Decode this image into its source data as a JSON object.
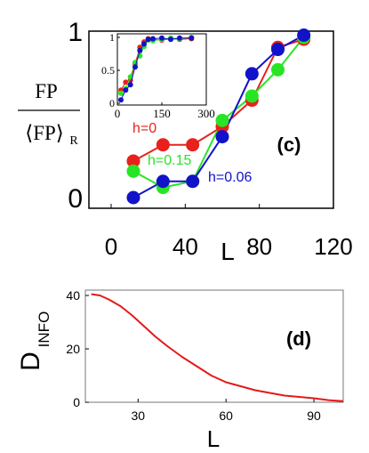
{
  "colors": {
    "red": "#e8211d",
    "green": "#27e524",
    "blue": "#1212c8",
    "curve": "#e31a1a",
    "axis": "#000000"
  },
  "chart_data": [
    {
      "type": "line",
      "panel_label": "(c)",
      "ylabel_numerator": "FP",
      "ylabel_denominator": "⟨FP⟩",
      "ylabel_denominator_sub": "R",
      "xlabel": "L",
      "xlim": [
        -12,
        120
      ],
      "ylim": [
        0,
        1
      ],
      "xticks": [
        "0",
        "40",
        "80",
        "120"
      ],
      "xtick_values": [
        0,
        40,
        80,
        120
      ],
      "yticks": [
        "0",
        "1"
      ],
      "ytick_values": [
        0,
        1
      ],
      "series": [
        {
          "name": "h=0",
          "color": "red",
          "x": [
            12,
            28,
            44,
            60,
            76,
            90,
            104
          ],
          "y": [
            0.36,
            0.44,
            0.44,
            0.53,
            0.66,
            0.92,
            0.96
          ]
        },
        {
          "name": "h=0.15",
          "color": "green",
          "x": [
            12,
            28,
            44,
            60,
            76,
            90,
            104
          ],
          "y": [
            0.31,
            0.23,
            0.26,
            0.56,
            0.68,
            0.81,
            0.97
          ]
        },
        {
          "name": "h=0.06",
          "color": "blue",
          "x": [
            12,
            28,
            44,
            60,
            76,
            90,
            104
          ],
          "y": [
            0.18,
            0.26,
            0.26,
            0.48,
            0.79,
            0.91,
            0.98
          ]
        }
      ],
      "inset": {
        "xlim": [
          0,
          300
        ],
        "ylim": [
          0,
          1
        ],
        "xticks": [
          "0",
          "150",
          "300"
        ],
        "xtick_values": [
          0,
          150,
          300
        ],
        "yticks": [
          "0",
          "0.5",
          "1"
        ],
        "ytick_values": [
          0,
          0.5,
          1
        ],
        "series": [
          {
            "color": "red",
            "x": [
              12,
              28,
              44,
              60,
              76,
              90,
              104,
              120,
              150,
              180,
              210,
              250
            ],
            "y": [
              0.2,
              0.32,
              0.35,
              0.6,
              0.85,
              0.93,
              0.98,
              0.97,
              0.96,
              0.98,
              0.97,
              0.98
            ]
          },
          {
            "color": "green",
            "x": [
              12,
              28,
              44,
              60,
              76,
              90,
              104,
              120,
              150,
              180,
              210,
              250
            ],
            "y": [
              0.15,
              0.22,
              0.4,
              0.62,
              0.72,
              0.86,
              0.96,
              0.95,
              0.97,
              0.99,
              0.98,
              1.0
            ]
          },
          {
            "color": "blue",
            "x": [
              12,
              28,
              44,
              60,
              76,
              90,
              104,
              120,
              150,
              180,
              210,
              250
            ],
            "y": [
              0.05,
              0.2,
              0.28,
              0.55,
              0.8,
              0.9,
              0.97,
              0.98,
              0.99,
              0.97,
              0.99,
              0.99
            ]
          }
        ]
      }
    },
    {
      "type": "line",
      "panel_label": "(d)",
      "ylabel": "D",
      "ylabel_sub": "INFO",
      "xlabel": "L",
      "xlim": [
        12,
        100
      ],
      "ylim": [
        0,
        42
      ],
      "xticks": [
        "30",
        "60",
        "90"
      ],
      "xtick_values": [
        30,
        60,
        90
      ],
      "yticks": [
        "0",
        "20",
        "40"
      ],
      "ytick_values": [
        0,
        20,
        40
      ],
      "series": [
        {
          "color": "curve",
          "x": [
            14,
            17,
            20,
            24,
            28,
            32,
            36,
            40,
            45,
            50,
            55,
            60,
            65,
            70,
            75,
            80,
            85,
            90,
            95,
            100
          ],
          "y": [
            40.5,
            40.0,
            38.5,
            36.0,
            32.5,
            28.5,
            24.5,
            21.0,
            17.0,
            13.5,
            10.0,
            7.5,
            6.0,
            4.5,
            3.5,
            2.5,
            2.0,
            1.5,
            0.8,
            0.4
          ]
        }
      ]
    }
  ]
}
